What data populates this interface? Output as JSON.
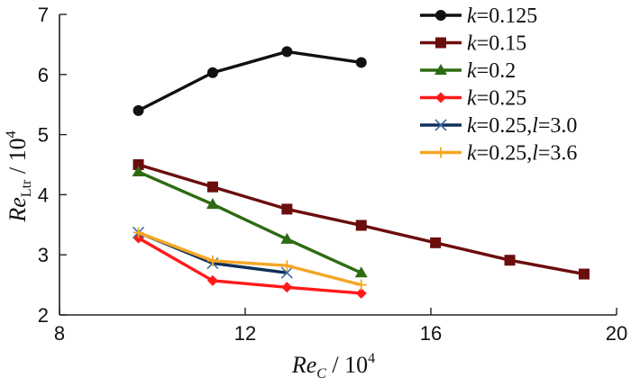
{
  "chart_data": {
    "type": "line",
    "title": "",
    "xlabel": {
      "main": "Re",
      "sub": "C",
      "unit": " / 10",
      "exp": "4"
    },
    "ylabel": {
      "main": "Re",
      "sub": "Ltr",
      "unit": " / 10",
      "exp": "4"
    },
    "xlim": [
      8,
      20
    ],
    "ylim": [
      2,
      7
    ],
    "xticks": [
      8,
      12,
      16,
      20
    ],
    "yticks": [
      2,
      3,
      4,
      5,
      6,
      7
    ],
    "xtick_labels": [
      "8",
      "12",
      "16",
      "20"
    ],
    "ytick_labels": [
      "2",
      "3",
      "4",
      "5",
      "6",
      "7"
    ],
    "grid": false,
    "legend_position": "top-right",
    "series": [
      {
        "name": "k=0.125",
        "legend": {
          "k": "k",
          "kval": "=0.125"
        },
        "color": "#111111",
        "marker": "circle",
        "x": [
          9.7,
          11.3,
          12.9,
          14.5
        ],
        "y": [
          5.4,
          6.03,
          6.38,
          6.2
        ]
      },
      {
        "name": "k=0.15",
        "legend": {
          "k": "k",
          "kval": "=0.15"
        },
        "color": "#6b0d0d",
        "marker": "square",
        "x": [
          9.7,
          11.3,
          12.9,
          14.5,
          16.1,
          17.7,
          19.3
        ],
        "y": [
          4.5,
          4.13,
          3.76,
          3.49,
          3.2,
          2.91,
          2.68
        ]
      },
      {
        "name": "k=0.2",
        "legend": {
          "k": "k",
          "kval": "=0.2"
        },
        "color": "#2e6b12",
        "marker": "triangle",
        "x": [
          9.7,
          11.3,
          12.9,
          14.5
        ],
        "y": [
          4.38,
          3.84,
          3.26,
          2.7
        ]
      },
      {
        "name": "k=0.25",
        "legend": {
          "k": "k",
          "kval": "=0.25"
        },
        "color": "#ff1a1a",
        "marker": "diamond",
        "x": [
          9.7,
          11.3,
          12.9,
          14.5
        ],
        "y": [
          3.28,
          2.57,
          2.46,
          2.36
        ]
      },
      {
        "name": "k=0.25,l=3.0",
        "legend": {
          "k": "k",
          "kval": "=0.25,",
          "l": "l",
          "lval": "=3.0"
        },
        "color": "#10305a",
        "marker": "x",
        "x": [
          9.7,
          11.3,
          12.9
        ],
        "y": [
          3.37,
          2.86,
          2.7
        ]
      },
      {
        "name": "k=0.25,l=3.6",
        "legend": {
          "k": "k",
          "kval": "=0.25,",
          "l": "l",
          "lval": "=3.6"
        },
        "color": "#f5a623",
        "marker": "plus",
        "x": [
          9.7,
          11.3,
          12.9,
          14.5
        ],
        "y": [
          3.37,
          2.9,
          2.82,
          2.5
        ]
      }
    ]
  }
}
